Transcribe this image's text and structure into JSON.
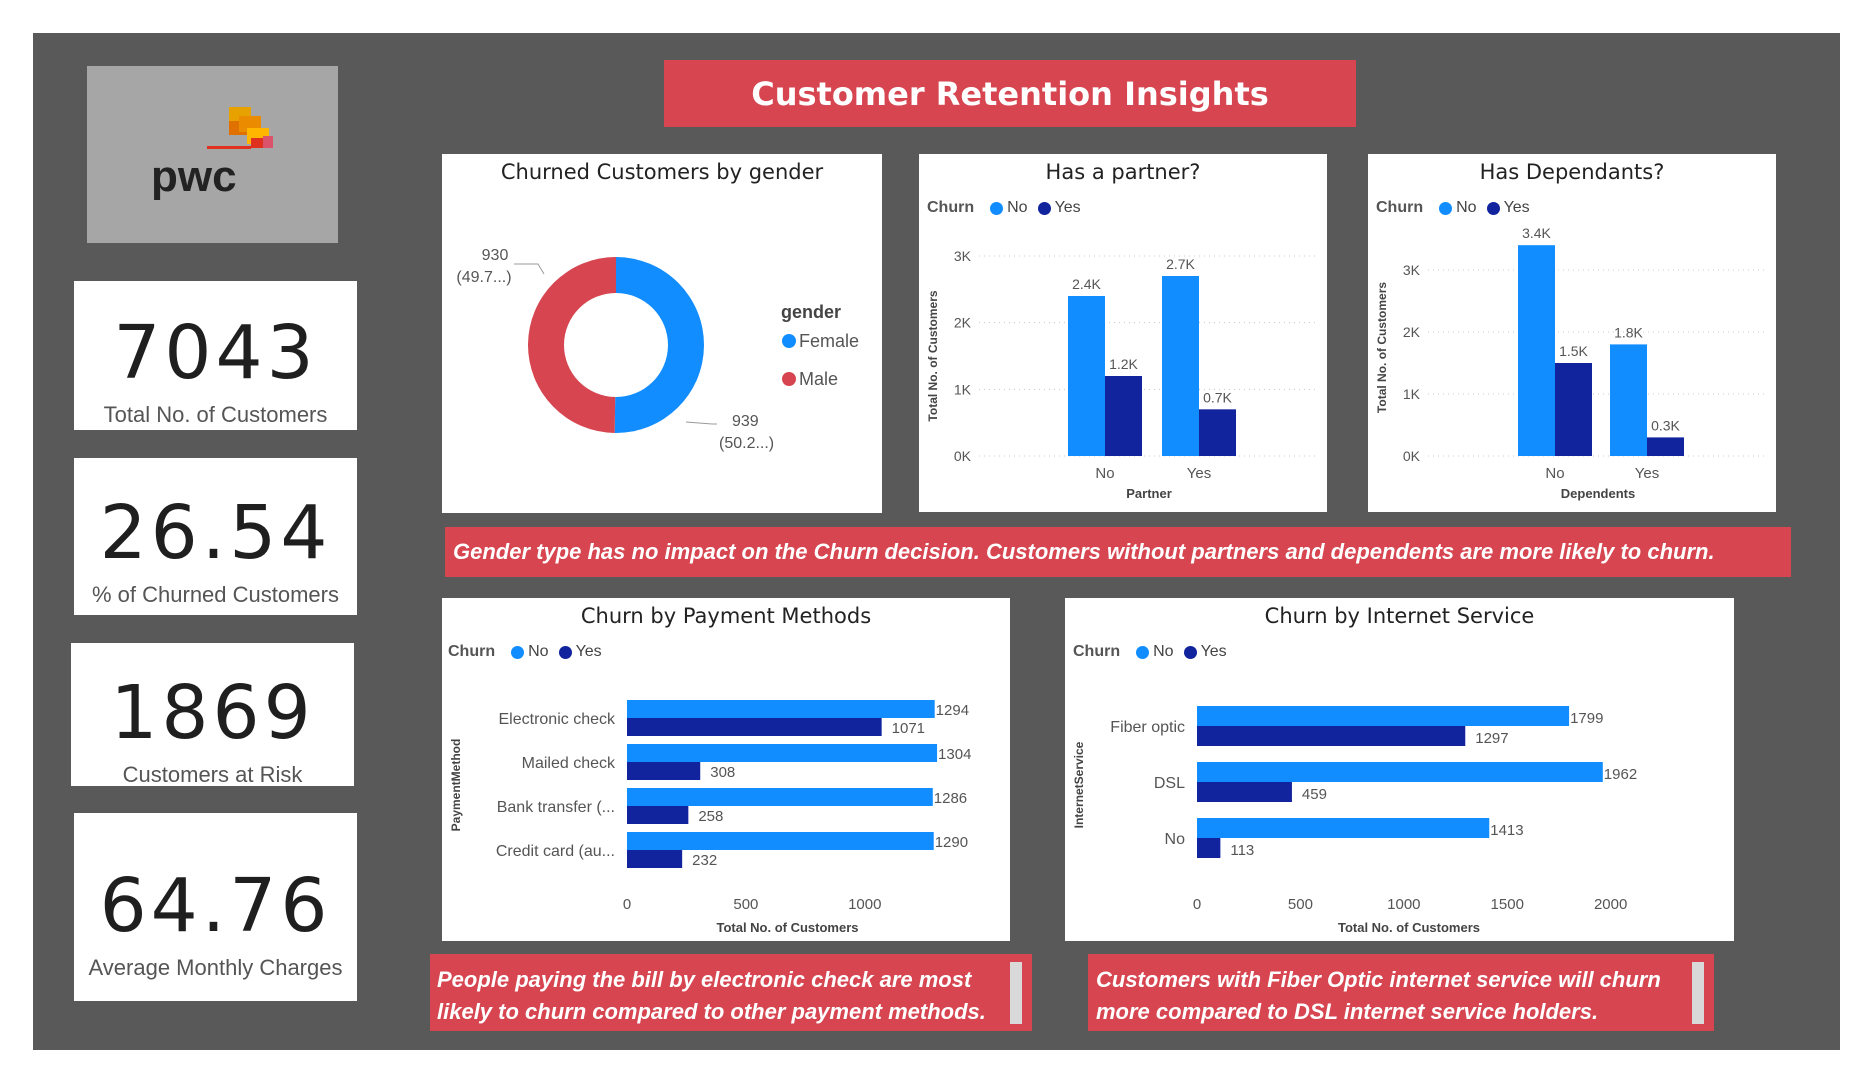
{
  "header": {
    "title": "Customer Retention Insights"
  },
  "logo": {
    "text": "pwc"
  },
  "kpis": [
    {
      "value": "7043",
      "label": "Total No. of Customers"
    },
    {
      "value": "26.54",
      "label": "% of Churned Customers"
    },
    {
      "value": "1869",
      "label": "Customers at Risk"
    },
    {
      "value": "64.76",
      "label": "Average Monthly Charges"
    }
  ],
  "colors": {
    "no": "#118dff",
    "yes": "#12239e",
    "female": "#118dff",
    "male": "#d64550",
    "accent": "#d64550"
  },
  "insights": {
    "gender": "Gender type has no impact on the Churn decision. Customers without partners and dependents are more likely to churn.",
    "payment": "People paying the bill by electronic check are most likely to churn compared to other payment methods.",
    "internet": "Customers with Fiber Optic internet service will churn more compared to DSL internet service holders."
  },
  "chart_data": [
    {
      "id": "gender",
      "type": "pie",
      "title": "Churned Customers by gender",
      "legend_title": "gender",
      "slices": [
        {
          "name": "Female",
          "value": 939,
          "label": "939",
          "pct_label": "(50.2...)"
        },
        {
          "name": "Male",
          "value": 930,
          "label": "930",
          "pct_label": "(49.7...)"
        }
      ]
    },
    {
      "id": "partner",
      "type": "bar",
      "title": "Has a partner?",
      "legend_title": "Churn",
      "categories": [
        "No",
        "Yes"
      ],
      "series": [
        {
          "name": "No",
          "values": [
            2400,
            2700
          ],
          "labels": [
            "2.4K",
            "2.7K"
          ]
        },
        {
          "name": "Yes",
          "values": [
            1200,
            700
          ],
          "labels": [
            "1.2K",
            "0.7K"
          ]
        }
      ],
      "xlabel": "Partner",
      "ylabel": "Total No. of Customers",
      "ylim": [
        0,
        3000
      ],
      "yticks": [
        {
          "v": 0,
          "t": "0K"
        },
        {
          "v": 1000,
          "t": "1K"
        },
        {
          "v": 2000,
          "t": "2K"
        },
        {
          "v": 3000,
          "t": "3K"
        }
      ]
    },
    {
      "id": "dependents",
      "type": "bar",
      "title": "Has Dependants?",
      "legend_title": "Churn",
      "categories": [
        "No",
        "Yes"
      ],
      "series": [
        {
          "name": "No",
          "values": [
            3400,
            1800
          ],
          "labels": [
            "3.4K",
            "1.8K"
          ]
        },
        {
          "name": "Yes",
          "values": [
            1500,
            300
          ],
          "labels": [
            "1.5K",
            "0.3K"
          ]
        }
      ],
      "xlabel": "Dependents",
      "ylabel": "Total No. of Customers",
      "ylim": [
        0,
        3500
      ],
      "yticks": [
        {
          "v": 0,
          "t": "0K"
        },
        {
          "v": 1000,
          "t": "1K"
        },
        {
          "v": 2000,
          "t": "2K"
        },
        {
          "v": 3000,
          "t": "3K"
        }
      ]
    },
    {
      "id": "payment",
      "type": "bar",
      "orientation": "horizontal",
      "title": "Churn by Payment Methods",
      "legend_title": "Churn",
      "categories": [
        "Electronic check",
        "Mailed check",
        "Bank transfer (...",
        "Credit card (au..."
      ],
      "series": [
        {
          "name": "No",
          "values": [
            1294,
            1304,
            1286,
            1290
          ]
        },
        {
          "name": "Yes",
          "values": [
            1071,
            308,
            258,
            232
          ]
        }
      ],
      "xlabel": "Total No. of Customers",
      "ylabel": "PaymentMethod",
      "xlim": [
        0,
        1350
      ],
      "xticks": [
        0,
        500,
        1000
      ]
    },
    {
      "id": "internet",
      "type": "bar",
      "orientation": "horizontal",
      "title": "Churn by Internet Service",
      "legend_title": "Churn",
      "categories": [
        "Fiber optic",
        "DSL",
        "No"
      ],
      "series": [
        {
          "name": "No",
          "values": [
            1799,
            1962,
            1413
          ]
        },
        {
          "name": "Yes",
          "values": [
            1297,
            459,
            113
          ]
        }
      ],
      "xlabel": "Total No. of Customers",
      "ylabel": "InternetService",
      "xlim": [
        0,
        2050
      ],
      "xticks": [
        0,
        500,
        1000,
        1500,
        2000
      ]
    }
  ]
}
